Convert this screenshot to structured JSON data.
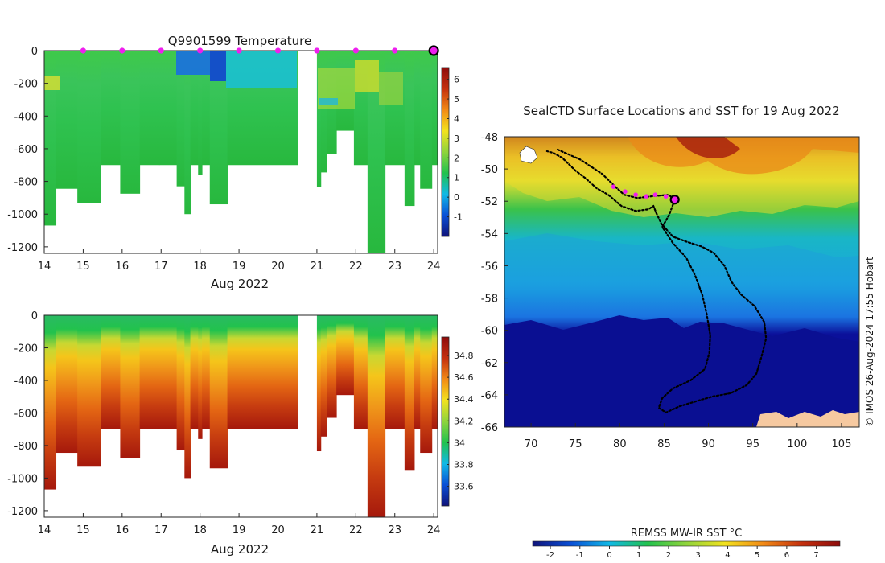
{
  "page": {
    "credit": "© IMOS 26-Aug-2024 17:55 Hobart"
  },
  "chart_data": [
    {
      "type": "heatmap",
      "id": "temperature",
      "title": "Q9901599  Temperature",
      "xlabel": "Aug 2022",
      "x_ticks": [
        14,
        15,
        16,
        17,
        18,
        19,
        20,
        21,
        22,
        23,
        24
      ],
      "y_ticks": [
        0,
        -200,
        -400,
        -600,
        -800,
        -1000,
        -1200
      ],
      "xlim": [
        14,
        24.1
      ],
      "ylim": [
        -1240,
        0
      ],
      "surface_markers": [
        15,
        16,
        17,
        18,
        19,
        20,
        21,
        22,
        23
      ],
      "current_marker": 24,
      "colorbar": {
        "ticks": [
          6,
          5,
          4,
          3,
          2,
          1,
          0,
          -1
        ],
        "range": [
          -2,
          6.6
        ],
        "colors": [
          "#10137a",
          "#0a4fd6",
          "#11b9e6",
          "#22c24d",
          "#8fd43c",
          "#f2e21e",
          "#f28a16",
          "#c4300e",
          "#8e0c0c"
        ]
      },
      "profiles": [
        {
          "x0": 14.0,
          "x1": 14.3,
          "depth": 1070
        },
        {
          "x0": 14.3,
          "x1": 14.85,
          "depth": 845
        },
        {
          "x0": 14.85,
          "x1": 15.45,
          "depth": 930
        },
        {
          "x0": 15.45,
          "x1": 15.95,
          "depth": 700
        },
        {
          "x0": 15.95,
          "x1": 16.45,
          "depth": 875
        },
        {
          "x0": 16.45,
          "x1": 16.95,
          "depth": 700
        },
        {
          "x0": 16.95,
          "x1": 17.4,
          "depth": 700
        },
        {
          "x0": 17.4,
          "x1": 17.6,
          "depth": 830
        },
        {
          "x0": 17.6,
          "x1": 17.75,
          "depth": 1000
        },
        {
          "x0": 17.75,
          "x1": 17.95,
          "depth": 700
        },
        {
          "x0": 17.95,
          "x1": 18.05,
          "depth": 760
        },
        {
          "x0": 18.05,
          "x1": 18.25,
          "depth": 700
        },
        {
          "x0": 18.25,
          "x1": 18.7,
          "depth": 940
        },
        {
          "x0": 18.7,
          "x1": 20.5,
          "depth": 700
        },
        {
          "x0": 21.0,
          "x1": 21.1,
          "depth": 835
        },
        {
          "x0": 21.1,
          "x1": 21.25,
          "depth": 745
        },
        {
          "x0": 21.25,
          "x1": 21.5,
          "depth": 630
        },
        {
          "x0": 21.5,
          "x1": 21.95,
          "depth": 490
        },
        {
          "x0": 21.95,
          "x1": 22.3,
          "depth": 700
        },
        {
          "x0": 22.3,
          "x1": 22.75,
          "depth": 1240
        },
        {
          "x0": 22.75,
          "x1": 23.25,
          "depth": 700
        },
        {
          "x0": 23.25,
          "x1": 23.5,
          "depth": 950
        },
        {
          "x0": 23.5,
          "x1": 23.65,
          "depth": 700
        },
        {
          "x0": 23.65,
          "x1": 23.95,
          "depth": 845
        },
        {
          "x0": 23.95,
          "x1": 24.08,
          "depth": 700
        }
      ]
    },
    {
      "type": "heatmap",
      "id": "salinity",
      "title": "",
      "xlabel": "Aug 2022",
      "x_ticks": [
        14,
        15,
        16,
        17,
        18,
        19,
        20,
        21,
        22,
        23,
        24
      ],
      "y_ticks": [
        0,
        -200,
        -400,
        -600,
        -800,
        -1000,
        -1200
      ],
      "xlim": [
        14,
        24.1
      ],
      "ylim": [
        -1240,
        0
      ],
      "colorbar": {
        "ticks": [
          "34.8",
          "34.6",
          "34.4",
          "34.2",
          "34",
          "33.8",
          "33.6"
        ],
        "range": [
          33.42,
          34.97
        ],
        "colors": [
          "#10137a",
          "#0a4fd6",
          "#11b9e6",
          "#22c24d",
          "#8fd43c",
          "#f2e21e",
          "#f28a16",
          "#c4300e",
          "#8e0c0c"
        ]
      },
      "profiles": "same as temperature"
    },
    {
      "type": "map",
      "id": "sst_map",
      "title": "SealCTD Surface Locations and SST for 19 Aug 2022",
      "x_ticks": [
        70,
        75,
        80,
        85,
        90,
        95,
        100,
        105
      ],
      "y_ticks": [
        -48,
        -50,
        -52,
        -54,
        -56,
        -58,
        -60,
        -62,
        -64,
        -66
      ],
      "xlim": [
        67,
        107
      ],
      "ylim": [
        -66,
        -48
      ],
      "track": [
        [
          73,
          -48.8
        ],
        [
          75.5,
          -49.4
        ],
        [
          78,
          -50.3
        ],
        [
          79.5,
          -51.1
        ],
        [
          80.5,
          -51.6
        ],
        [
          82,
          -51.8
        ],
        [
          83.5,
          -51.7
        ],
        [
          85.5,
          -51.6
        ],
        [
          86.2,
          -51.9
        ],
        [
          85.6,
          -52.8
        ],
        [
          84.8,
          -53.6
        ],
        [
          86,
          -54.6
        ],
        [
          87.5,
          -55.5
        ],
        [
          88.5,
          -56.6
        ],
        [
          89.3,
          -57.8
        ],
        [
          89.8,
          -59
        ],
        [
          90.2,
          -60.3
        ],
        [
          90.1,
          -61.4
        ],
        [
          89.6,
          -62.4
        ],
        [
          88,
          -63.1
        ],
        [
          86,
          -63.6
        ],
        [
          84.8,
          -64.2
        ],
        [
          84.4,
          -64.8
        ],
        [
          85.2,
          -65.1
        ],
        [
          86.8,
          -64.7
        ],
        [
          88.6,
          -64.4
        ],
        [
          90.5,
          -64.1
        ],
        [
          92.5,
          -63.9
        ],
        [
          94.3,
          -63.4
        ],
        [
          95.4,
          -62.7
        ],
        [
          96,
          -61.6
        ],
        [
          96.5,
          -60.5
        ],
        [
          96.3,
          -59.5
        ],
        [
          95.2,
          -58.5
        ],
        [
          93.7,
          -57.8
        ],
        [
          92.6,
          -57
        ],
        [
          91.8,
          -56
        ],
        [
          90.6,
          -55.2
        ],
        [
          89.2,
          -54.8
        ],
        [
          87.5,
          -54.5
        ],
        [
          86,
          -54.2
        ],
        [
          84.7,
          -53.4
        ],
        [
          84.1,
          -52.7
        ],
        [
          83.8,
          -52.3
        ],
        [
          83.2,
          -52.5
        ],
        [
          81.8,
          -52.6
        ],
        [
          80.2,
          -52.3
        ],
        [
          78.7,
          -51.6
        ],
        [
          77.4,
          -51.2
        ],
        [
          76.2,
          -50.6
        ],
        [
          75,
          -50.1
        ],
        [
          73.5,
          -49.3
        ],
        [
          72.5,
          -49
        ],
        [
          71.8,
          -48.9
        ]
      ],
      "highlight_points": [
        [
          79.3,
          -51.1
        ],
        [
          80.6,
          -51.4
        ],
        [
          81.8,
          -51.6
        ],
        [
          83,
          -51.7
        ],
        [
          84,
          -51.6
        ],
        [
          85.2,
          -51.7
        ]
      ],
      "current_point": [
        86.2,
        -51.9
      ]
    },
    {
      "type": "colorbar",
      "id": "sst_colorbar",
      "title": "REMSS MW-IR SST °C",
      "ticks": [
        -2,
        -1,
        0,
        1,
        2,
        3,
        4,
        5,
        6,
        7
      ],
      "range": [
        -2.6,
        7.8
      ],
      "colors": [
        "#10137a",
        "#0a4fd6",
        "#11b9e6",
        "#22c24d",
        "#8fd43c",
        "#f2e21e",
        "#f28a16",
        "#c4300e",
        "#8e0c0c"
      ]
    }
  ]
}
